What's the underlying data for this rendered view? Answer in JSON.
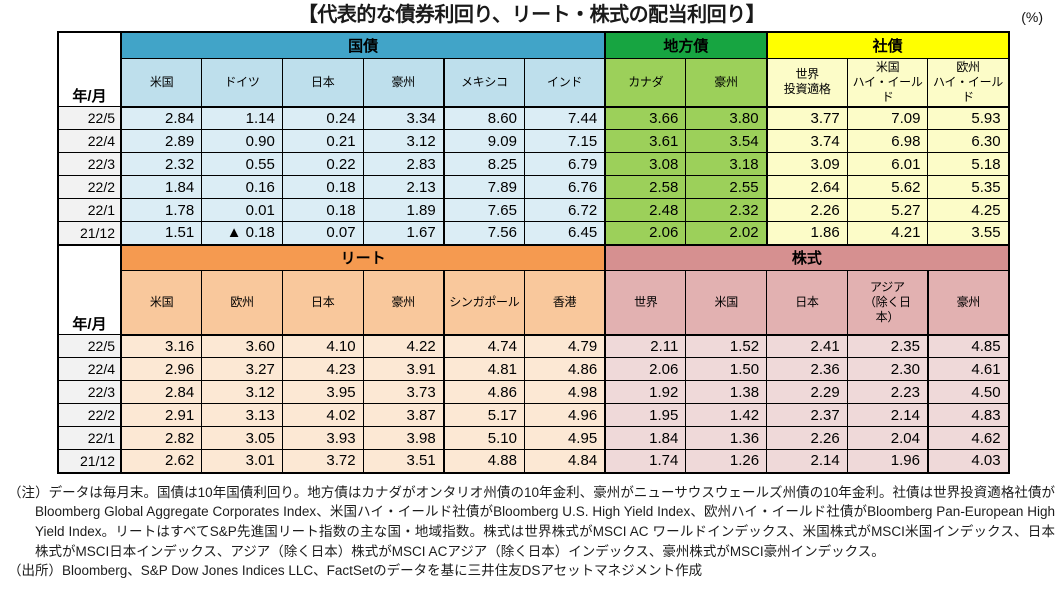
{
  "title": "【代表的な債券利回り、リート・株式の配当利回り】",
  "unit_label": "(%)",
  "row_label_header": "年/月",
  "tables": [
    {
      "name": "bonds",
      "tall_header": false,
      "groups": [
        {
          "id": "govt-bond",
          "label": "国債",
          "band_color": "#41A4C8",
          "head_color": "#BEDFEC",
          "cell_color": "#DBEDF5",
          "divider_after": [
            4
          ],
          "columns": [
            "米国",
            "ドイツ",
            "日本",
            "豪州",
            "メキシコ",
            "インド"
          ]
        },
        {
          "id": "muni-bond",
          "label": "地方債",
          "band_color": "#17A541",
          "head_color": "#9CD05A",
          "cell_color": "#9CD05A",
          "divider_after": [],
          "columns": [
            "カナダ",
            "豪州"
          ]
        },
        {
          "id": "corp-bond",
          "label": "社債",
          "band_color": "#FFFF00",
          "head_color": "#FCFCC8",
          "cell_color": "#FCFCC8",
          "divider_after": [],
          "columns": [
            "世界\n投資適格",
            "米国\nハイ・イールド",
            "欧州\nハイ・イールド"
          ]
        }
      ],
      "rows": [
        {
          "label": "22/5",
          "values": [
            "2.84",
            "1.14",
            "0.24",
            "3.34",
            "8.60",
            "7.44",
            "3.66",
            "3.80",
            "3.77",
            "7.09",
            "5.93"
          ]
        },
        {
          "label": "22/4",
          "values": [
            "2.89",
            "0.90",
            "0.21",
            "3.12",
            "9.09",
            "7.15",
            "3.61",
            "3.54",
            "3.74",
            "6.98",
            "6.30"
          ]
        },
        {
          "label": "22/3",
          "values": [
            "2.32",
            "0.55",
            "0.22",
            "2.83",
            "8.25",
            "6.79",
            "3.08",
            "3.18",
            "3.09",
            "6.01",
            "5.18"
          ]
        },
        {
          "label": "22/2",
          "values": [
            "1.84",
            "0.16",
            "0.18",
            "2.13",
            "7.89",
            "6.76",
            "2.58",
            "2.55",
            "2.64",
            "5.62",
            "5.35"
          ]
        },
        {
          "label": "22/1",
          "values": [
            "1.78",
            "0.01",
            "0.18",
            "1.89",
            "7.65",
            "6.72",
            "2.48",
            "2.32",
            "2.26",
            "5.27",
            "4.25"
          ]
        },
        {
          "label": "21/12",
          "values": [
            "1.51",
            "▲ 0.18",
            "0.07",
            "1.67",
            "7.56",
            "6.45",
            "2.06",
            "2.02",
            "1.86",
            "4.21",
            "3.55"
          ]
        }
      ]
    },
    {
      "name": "reit-equity",
      "tall_header": true,
      "groups": [
        {
          "id": "reit",
          "label": "リート",
          "band_color": "#F59A50",
          "head_color": "#F9C89C",
          "cell_color": "#FCE8D4",
          "divider_after": [
            4
          ],
          "columns": [
            "米国",
            "欧州",
            "日本",
            "豪州",
            "シンガポール",
            "香港"
          ]
        },
        {
          "id": "equity",
          "label": "株式",
          "band_color": "#D69090",
          "head_color": "#E2B1B1",
          "cell_color": "#EFD9D9",
          "divider_after": [
            4
          ],
          "columns": [
            "世界",
            "米国",
            "日本",
            "アジア\n（除く日\n本）",
            "豪州"
          ]
        }
      ],
      "rows": [
        {
          "label": "22/5",
          "values": [
            "3.16",
            "3.60",
            "4.10",
            "4.22",
            "4.74",
            "4.79",
            "2.11",
            "1.52",
            "2.41",
            "2.35",
            "4.85"
          ]
        },
        {
          "label": "22/4",
          "values": [
            "2.96",
            "3.27",
            "4.23",
            "3.91",
            "4.81",
            "4.86",
            "2.06",
            "1.50",
            "2.36",
            "2.30",
            "4.61"
          ]
        },
        {
          "label": "22/3",
          "values": [
            "2.84",
            "3.12",
            "3.95",
            "3.73",
            "4.86",
            "4.98",
            "1.92",
            "1.38",
            "2.29",
            "2.23",
            "4.50"
          ]
        },
        {
          "label": "22/2",
          "values": [
            "2.91",
            "3.13",
            "4.02",
            "3.87",
            "5.17",
            "4.96",
            "1.95",
            "1.42",
            "2.37",
            "2.14",
            "4.83"
          ]
        },
        {
          "label": "22/1",
          "values": [
            "2.82",
            "3.05",
            "3.93",
            "3.98",
            "5.10",
            "4.95",
            "1.84",
            "1.36",
            "2.26",
            "2.04",
            "4.62"
          ]
        },
        {
          "label": "21/12",
          "values": [
            "2.62",
            "3.01",
            "3.72",
            "3.51",
            "4.88",
            "4.84",
            "1.74",
            "1.26",
            "2.14",
            "1.96",
            "4.03"
          ]
        }
      ]
    }
  ],
  "note": "（注）データは毎月末。国債は10年国債利回り。地方債はカナダがオンタリオ州債の10年金利、豪州がニューサウスウェールズ州債の10年金利。社債は世界投資適格社債がBloomberg Global Aggregate Corporates Index、米国ハイ・イールド社債がBloomberg U.S. High Yield Index、欧州ハイ・イールド社債がBloomberg Pan-European High Yield Index。リートはすべてS&P先進国リート指数の主な国・地域指数。株式は世界株式がMSCI AC ワールドインデックス、米国株式がMSCI米国インデックス、日本株式がMSCI日本インデックス、アジア（除く日本）株式がMSCI ACアジア（除く日本）インデックス、豪州株式がMSCI豪州インデックス。",
  "source": "（出所）Bloomberg、S&P Dow Jones Indices LLC、FactSetのデータを基に三井住友DSアセットマネジメント作成"
}
